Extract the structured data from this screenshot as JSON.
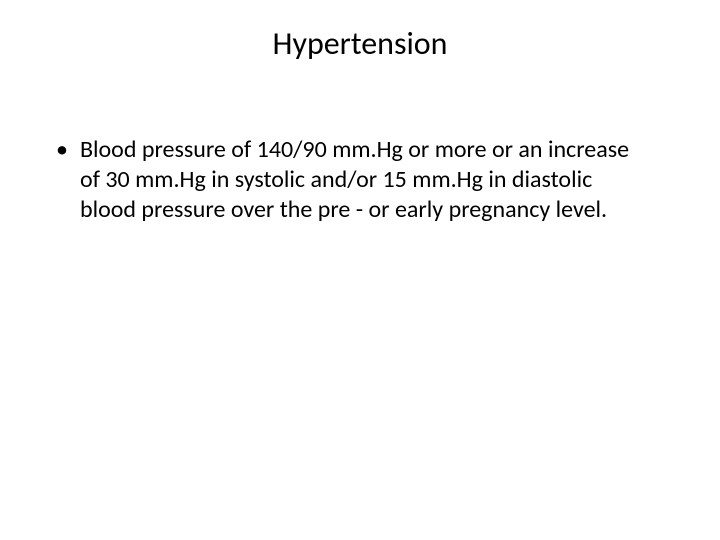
{
  "slide": {
    "title": "Hypertension",
    "bullets": [
      {
        "text": "Blood pressure of 140/90 mm.Hg or more or an increase of 30 mm.Hg in systolic and/or 15 mm.Hg in diastolic blood pressure over the pre - or early pregnancy level."
      }
    ],
    "styling": {
      "background_color": "#ffffff",
      "text_color": "#000000",
      "title_fontsize": 32,
      "body_fontsize": 24,
      "font_family": "Calibri",
      "bullet_marker": "•"
    }
  }
}
